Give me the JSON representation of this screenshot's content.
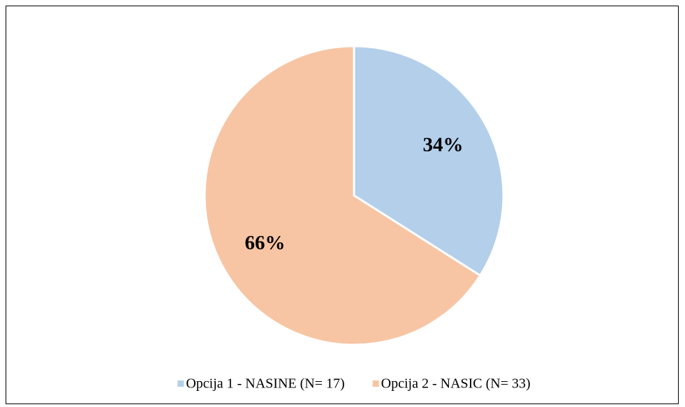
{
  "chart_data": {
    "type": "pie",
    "categories": [
      "Opcija 1 - NASINE (N= 17)",
      "Opcija 2 - NASIC (N= 33)"
    ],
    "values": [
      34,
      66
    ],
    "value_labels": [
      "34%",
      "66%"
    ],
    "colors": [
      "#b4cfea",
      "#f7c5a4"
    ],
    "legend": "bottom"
  }
}
